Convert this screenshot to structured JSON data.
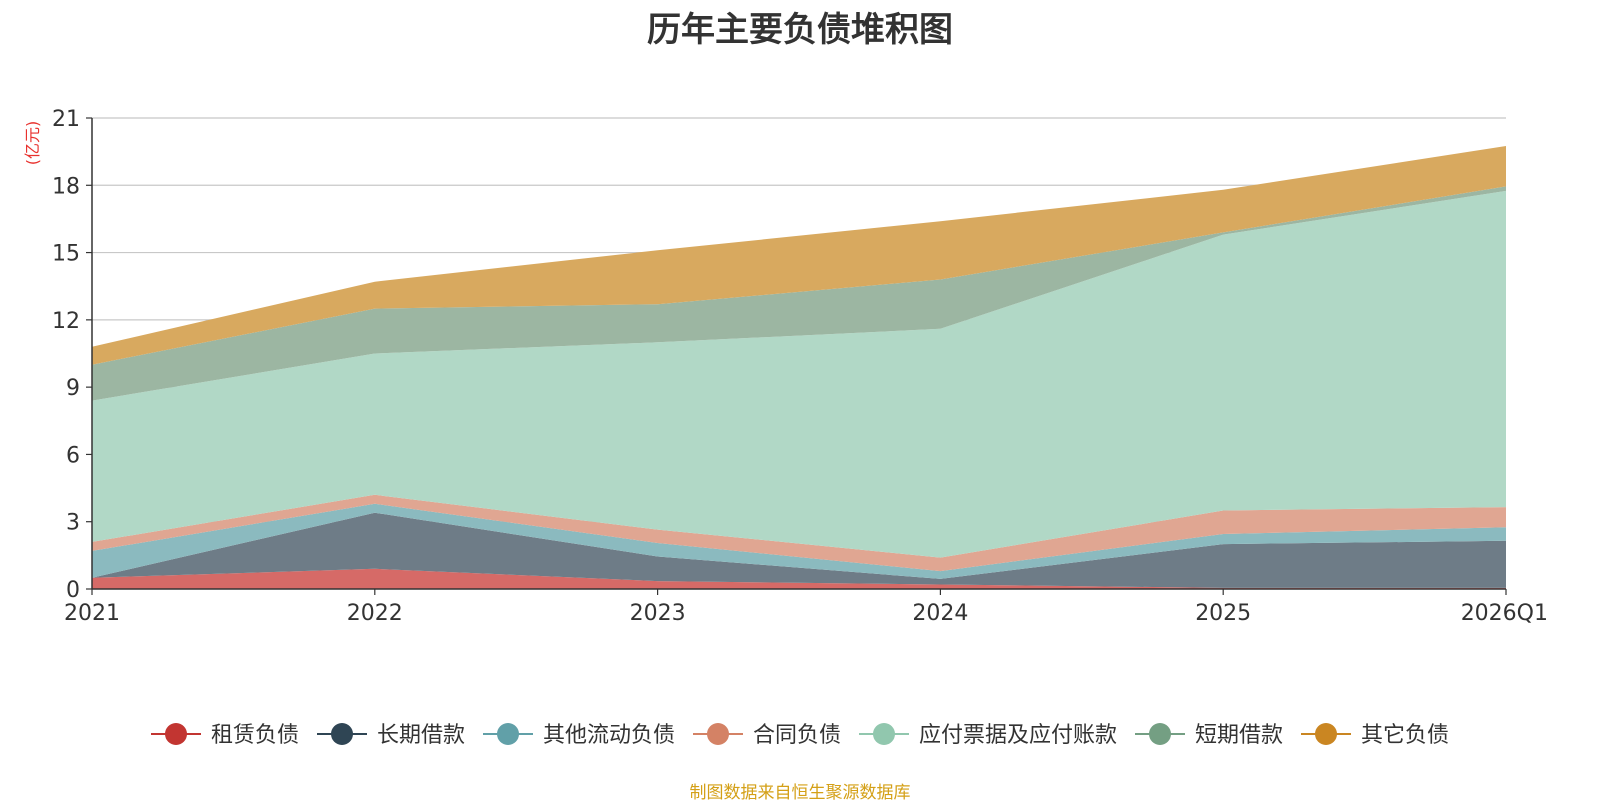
{
  "chart_data": {
    "type": "area",
    "stacked": true,
    "title": "历年主要负债堆积图",
    "unit_label": "(亿元)",
    "categories": [
      "2021",
      "2022",
      "2023",
      "2024",
      "2025",
      "2026Q1"
    ],
    "ylim": [
      0,
      21
    ],
    "yticks": [
      0,
      3,
      6,
      9,
      12,
      15,
      18,
      21
    ],
    "grid": true,
    "legend_position": "bottom",
    "series": [
      {
        "name": "租赁负债",
        "color": "#c23531",
        "fill": "#d66a67",
        "values": [
          0.5,
          0.9,
          0.35,
          0.2,
          0.05,
          0.05
        ]
      },
      {
        "name": "长期借款",
        "color": "#2f4554",
        "fill": "#6e7c87",
        "values": [
          0.0,
          2.5,
          1.1,
          0.25,
          1.95,
          2.1
        ]
      },
      {
        "name": "其他流动负债",
        "color": "#61a0a8",
        "fill": "#8bbabf",
        "values": [
          1.2,
          0.4,
          0.6,
          0.35,
          0.45,
          0.6
        ]
      },
      {
        "name": "合同负债",
        "color": "#d48265",
        "fill": "#e0a692",
        "values": [
          0.4,
          0.4,
          0.6,
          0.6,
          1.05,
          0.9
        ]
      },
      {
        "name": "应付票据及应付账款",
        "color": "#91c7ae",
        "fill": "#b1d8c6",
        "values": [
          6.3,
          6.3,
          8.35,
          10.2,
          12.3,
          14.1
        ]
      },
      {
        "name": "短期借款",
        "color": "#749f83",
        "fill": "#9cb6a2",
        "values": [
          1.6,
          2.0,
          1.7,
          2.2,
          0.1,
          0.2
        ]
      },
      {
        "name": "其它负债",
        "color": "#ca8622",
        "fill": "#d8a95f",
        "values": [
          0.8,
          1.2,
          2.4,
          2.6,
          1.9,
          1.8
        ]
      }
    ]
  },
  "source_note": "制图数据来自恒生聚源数据库"
}
